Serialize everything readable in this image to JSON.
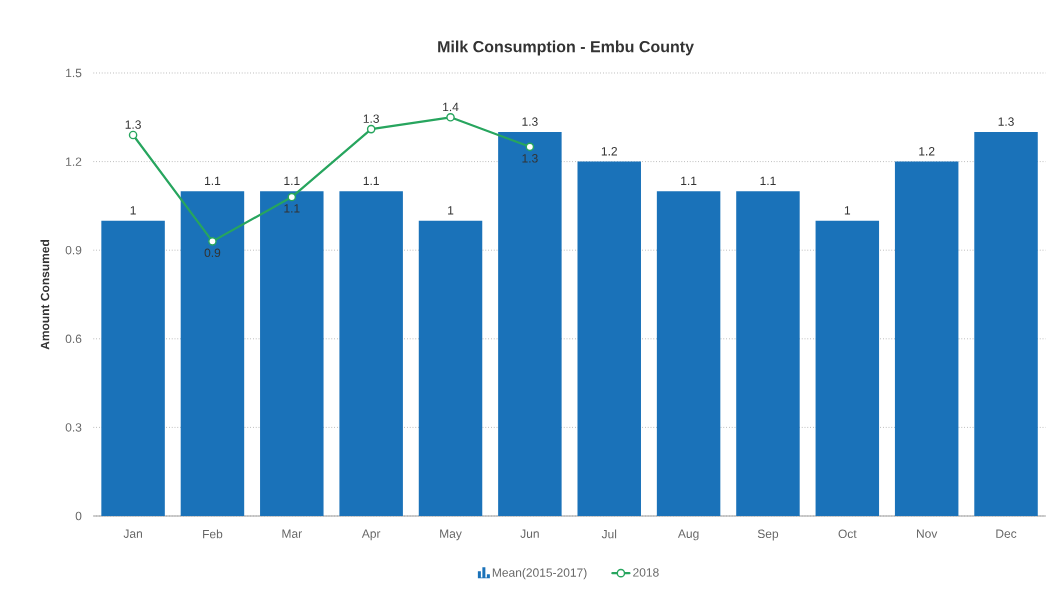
{
  "chart_data": {
    "type": "bar",
    "title": "Milk Consumption - Embu County",
    "ylabel": "Amount Consumed",
    "categories": [
      "Jan",
      "Feb",
      "Mar",
      "Apr",
      "May",
      "Jun",
      "Jul",
      "Aug",
      "Sep",
      "Oct",
      "Nov",
      "Dec"
    ],
    "ylim": [
      0,
      1.5
    ],
    "yticks": [
      0,
      0.3,
      0.6,
      0.9,
      1.2,
      1.5
    ],
    "grid": "y",
    "legend": "bottom",
    "series": [
      {
        "name": "Mean(2015-2017)",
        "color": "#1a72b9",
        "values": [
          1,
          1.1,
          1.1,
          1.1,
          1,
          1.3,
          1.2,
          1.1,
          1.1,
          1,
          1.2,
          1.3
        ],
        "value_labels": [
          "1",
          "1.1",
          "1.1",
          "1.1",
          "1",
          "1.3",
          "1.2",
          "1.1",
          "1.1",
          "1",
          "1.2",
          "1.3"
        ]
      },
      {
        "name": "2018",
        "type": "line",
        "color": "#27a55e",
        "marker": "circle",
        "line_style": "solid",
        "values": [
          1.29,
          0.93,
          1.08,
          1.31,
          1.35,
          1.25,
          null,
          null,
          null,
          null,
          null,
          null
        ],
        "value_labels": [
          "1.3",
          "0.9",
          "1.1",
          "1.3",
          "1.4",
          "1.3",
          null,
          null,
          null,
          null,
          null,
          null
        ]
      }
    ]
  }
}
